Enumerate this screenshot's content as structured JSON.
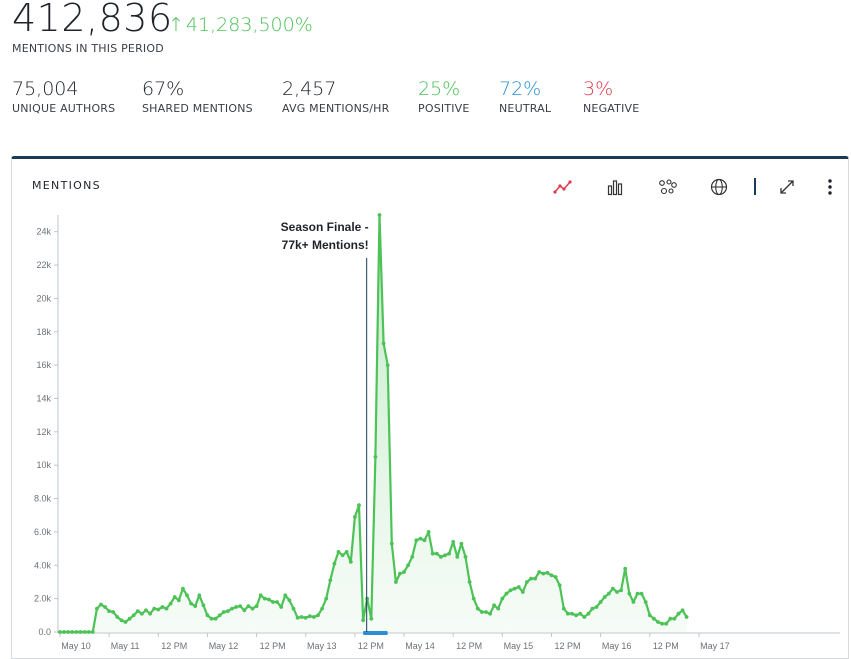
{
  "summary": {
    "total_mentions": "412,836",
    "growth": "41,283,500%",
    "total_label": "MENTIONS IN THIS PERIOD",
    "stats": [
      {
        "value": "75,004",
        "label": "UNIQUE AUTHORS",
        "color": "#1f2329"
      },
      {
        "value": "67%",
        "label": "SHARED MENTIONS",
        "color": "#1f2329"
      },
      {
        "value": "2,457",
        "label": "AVG MENTIONS/HR",
        "color": "#1f2329"
      },
      {
        "value": "25%",
        "label": "POSITIVE",
        "color": "#4cc257"
      },
      {
        "value": "72%",
        "label": "NEUTRAL",
        "color": "#2b8fd6"
      },
      {
        "value": "3%",
        "label": "NEGATIVE",
        "color": "#e0394b"
      }
    ]
  },
  "card": {
    "title": "MENTIONS",
    "toolbar": {
      "line_icon": "line-chart-icon",
      "bar_icon": "bar-chart-icon",
      "cluster_icon": "bubbles-icon",
      "globe_icon": "globe-icon",
      "expand_icon": "expand-icon",
      "more_icon": "more-vertical-icon"
    }
  },
  "colors": {
    "series": "#4cc257",
    "fill": "#d5f0d8",
    "annotation": "#1b3a57",
    "highlight": "#2b8fd6",
    "active_tool": "#e0394b",
    "header_border": "#1b3a57"
  },
  "chart_data": {
    "type": "area",
    "title": "MENTIONS",
    "xlabel": "",
    "ylabel": "",
    "ylim": [
      0,
      25000
    ],
    "y_ticks": [
      0,
      2000,
      4000,
      6000,
      8000,
      10000,
      12000,
      14000,
      16000,
      18000,
      20000,
      22000,
      24000
    ],
    "y_tick_labels": [
      "0.0",
      "2.0k",
      "4.0k",
      "6.0k",
      "8.0k",
      "10k",
      "12k",
      "14k",
      "16k",
      "18k",
      "20k",
      "22k",
      "24k"
    ],
    "x_range_hours": [
      0,
      188
    ],
    "x_ticks": [
      {
        "hour": 0,
        "label": "May 10"
      },
      {
        "hour": 12,
        "label": "May 11"
      },
      {
        "hour": 24,
        "label": "12 PM"
      },
      {
        "hour": 36,
        "label": "May 12"
      },
      {
        "hour": 48,
        "label": "12 PM"
      },
      {
        "hour": 60,
        "label": "May 13"
      },
      {
        "hour": 72,
        "label": "12 PM"
      },
      {
        "hour": 84,
        "label": "May 14"
      },
      {
        "hour": 96,
        "label": "12 PM"
      },
      {
        "hour": 108,
        "label": "May 15"
      },
      {
        "hour": 120,
        "label": "12 PM"
      },
      {
        "hour": 132,
        "label": "May 16"
      },
      {
        "hour": 144,
        "label": "12 PM"
      },
      {
        "hour": 156,
        "label": "May 17"
      }
    ],
    "grid": false,
    "series": [
      {
        "points": [
          [
            0,
            0
          ],
          [
            1,
            0
          ],
          [
            2,
            0
          ],
          [
            3,
            0
          ],
          [
            4,
            0
          ],
          [
            5,
            0
          ],
          [
            6,
            0
          ],
          [
            7,
            0
          ],
          [
            8,
            0
          ],
          [
            9,
            1400
          ],
          [
            10,
            1650
          ],
          [
            11,
            1500
          ],
          [
            12,
            1250
          ],
          [
            13,
            1200
          ],
          [
            14,
            900
          ],
          [
            15,
            700
          ],
          [
            16,
            600
          ],
          [
            17,
            800
          ],
          [
            18,
            1000
          ],
          [
            19,
            1250
          ],
          [
            20,
            1100
          ],
          [
            21,
            1300
          ],
          [
            22,
            1100
          ],
          [
            23,
            1400
          ],
          [
            24,
            1350
          ],
          [
            25,
            1500
          ],
          [
            26,
            1400
          ],
          [
            27,
            1700
          ],
          [
            28,
            2100
          ],
          [
            29,
            1900
          ],
          [
            30,
            2600
          ],
          [
            31,
            2200
          ],
          [
            32,
            1700
          ],
          [
            33,
            1550
          ],
          [
            34,
            2200
          ],
          [
            35,
            1600
          ],
          [
            36,
            1000
          ],
          [
            37,
            800
          ],
          [
            38,
            800
          ],
          [
            39,
            1000
          ],
          [
            40,
            1200
          ],
          [
            41,
            1250
          ],
          [
            42,
            1400
          ],
          [
            43,
            1500
          ],
          [
            44,
            1550
          ],
          [
            45,
            1300
          ],
          [
            46,
            1550
          ],
          [
            47,
            1400
          ],
          [
            48,
            1550
          ],
          [
            49,
            2200
          ],
          [
            50,
            2000
          ],
          [
            51,
            1950
          ],
          [
            52,
            1800
          ],
          [
            53,
            1800
          ],
          [
            54,
            1500
          ],
          [
            55,
            2200
          ],
          [
            56,
            1900
          ],
          [
            57,
            1400
          ],
          [
            58,
            850
          ],
          [
            59,
            900
          ],
          [
            60,
            850
          ],
          [
            61,
            950
          ],
          [
            62,
            900
          ],
          [
            63,
            1000
          ],
          [
            64,
            1400
          ],
          [
            65,
            2000
          ],
          [
            66,
            3100
          ],
          [
            67,
            4100
          ],
          [
            68,
            4800
          ],
          [
            69,
            4600
          ],
          [
            70,
            4800
          ],
          [
            71,
            4200
          ],
          [
            72,
            6900
          ],
          [
            73,
            7600
          ],
          [
            74,
            700
          ],
          [
            75,
            2000
          ],
          [
            76,
            800
          ],
          [
            77,
            10500
          ],
          [
            78,
            25000
          ],
          [
            79,
            17300
          ],
          [
            80,
            16000
          ],
          [
            81,
            5300
          ],
          [
            82,
            3000
          ],
          [
            83,
            3500
          ],
          [
            84,
            3600
          ],
          [
            85,
            4000
          ],
          [
            86,
            4500
          ],
          [
            87,
            5500
          ],
          [
            88,
            5600
          ],
          [
            89,
            5500
          ],
          [
            90,
            6000
          ],
          [
            91,
            4700
          ],
          [
            92,
            4700
          ],
          [
            93,
            4500
          ],
          [
            94,
            4600
          ],
          [
            95,
            4700
          ],
          [
            96,
            5400
          ],
          [
            97,
            4500
          ],
          [
            98,
            5300
          ],
          [
            99,
            4500
          ],
          [
            100,
            3000
          ],
          [
            101,
            2000
          ],
          [
            102,
            1400
          ],
          [
            103,
            1200
          ],
          [
            104,
            1200
          ],
          [
            105,
            1100
          ],
          [
            106,
            1600
          ],
          [
            107,
            1400
          ],
          [
            108,
            2000
          ],
          [
            109,
            2300
          ],
          [
            110,
            2500
          ],
          [
            111,
            2600
          ],
          [
            112,
            2700
          ],
          [
            113,
            2400
          ],
          [
            114,
            3000
          ],
          [
            115,
            3200
          ],
          [
            116,
            3200
          ],
          [
            117,
            3600
          ],
          [
            118,
            3500
          ],
          [
            119,
            3550
          ],
          [
            120,
            3400
          ],
          [
            121,
            3300
          ],
          [
            122,
            2800
          ],
          [
            123,
            1400
          ],
          [
            124,
            1100
          ],
          [
            125,
            1100
          ],
          [
            126,
            1000
          ],
          [
            127,
            1100
          ],
          [
            128,
            900
          ],
          [
            129,
            1100
          ],
          [
            130,
            1400
          ],
          [
            131,
            1500
          ],
          [
            132,
            1800
          ],
          [
            133,
            2100
          ],
          [
            134,
            2300
          ],
          [
            135,
            2600
          ],
          [
            136,
            2400
          ],
          [
            137,
            2500
          ],
          [
            138,
            3800
          ],
          [
            139,
            2300
          ],
          [
            140,
            1800
          ],
          [
            141,
            2300
          ],
          [
            142,
            2300
          ],
          [
            143,
            1800
          ],
          [
            144,
            1000
          ],
          [
            145,
            800
          ],
          [
            146,
            600
          ],
          [
            147,
            500
          ],
          [
            148,
            500
          ],
          [
            149,
            800
          ],
          [
            150,
            800
          ],
          [
            151,
            1100
          ],
          [
            152,
            1300
          ],
          [
            153,
            900
          ]
        ]
      }
    ],
    "annotations": [
      {
        "hour": 75,
        "value": 25000,
        "text_lines": [
          "Season Finale -",
          "77k+ Mentions!"
        ]
      }
    ],
    "highlight_range_hours": [
      74,
      80
    ]
  }
}
